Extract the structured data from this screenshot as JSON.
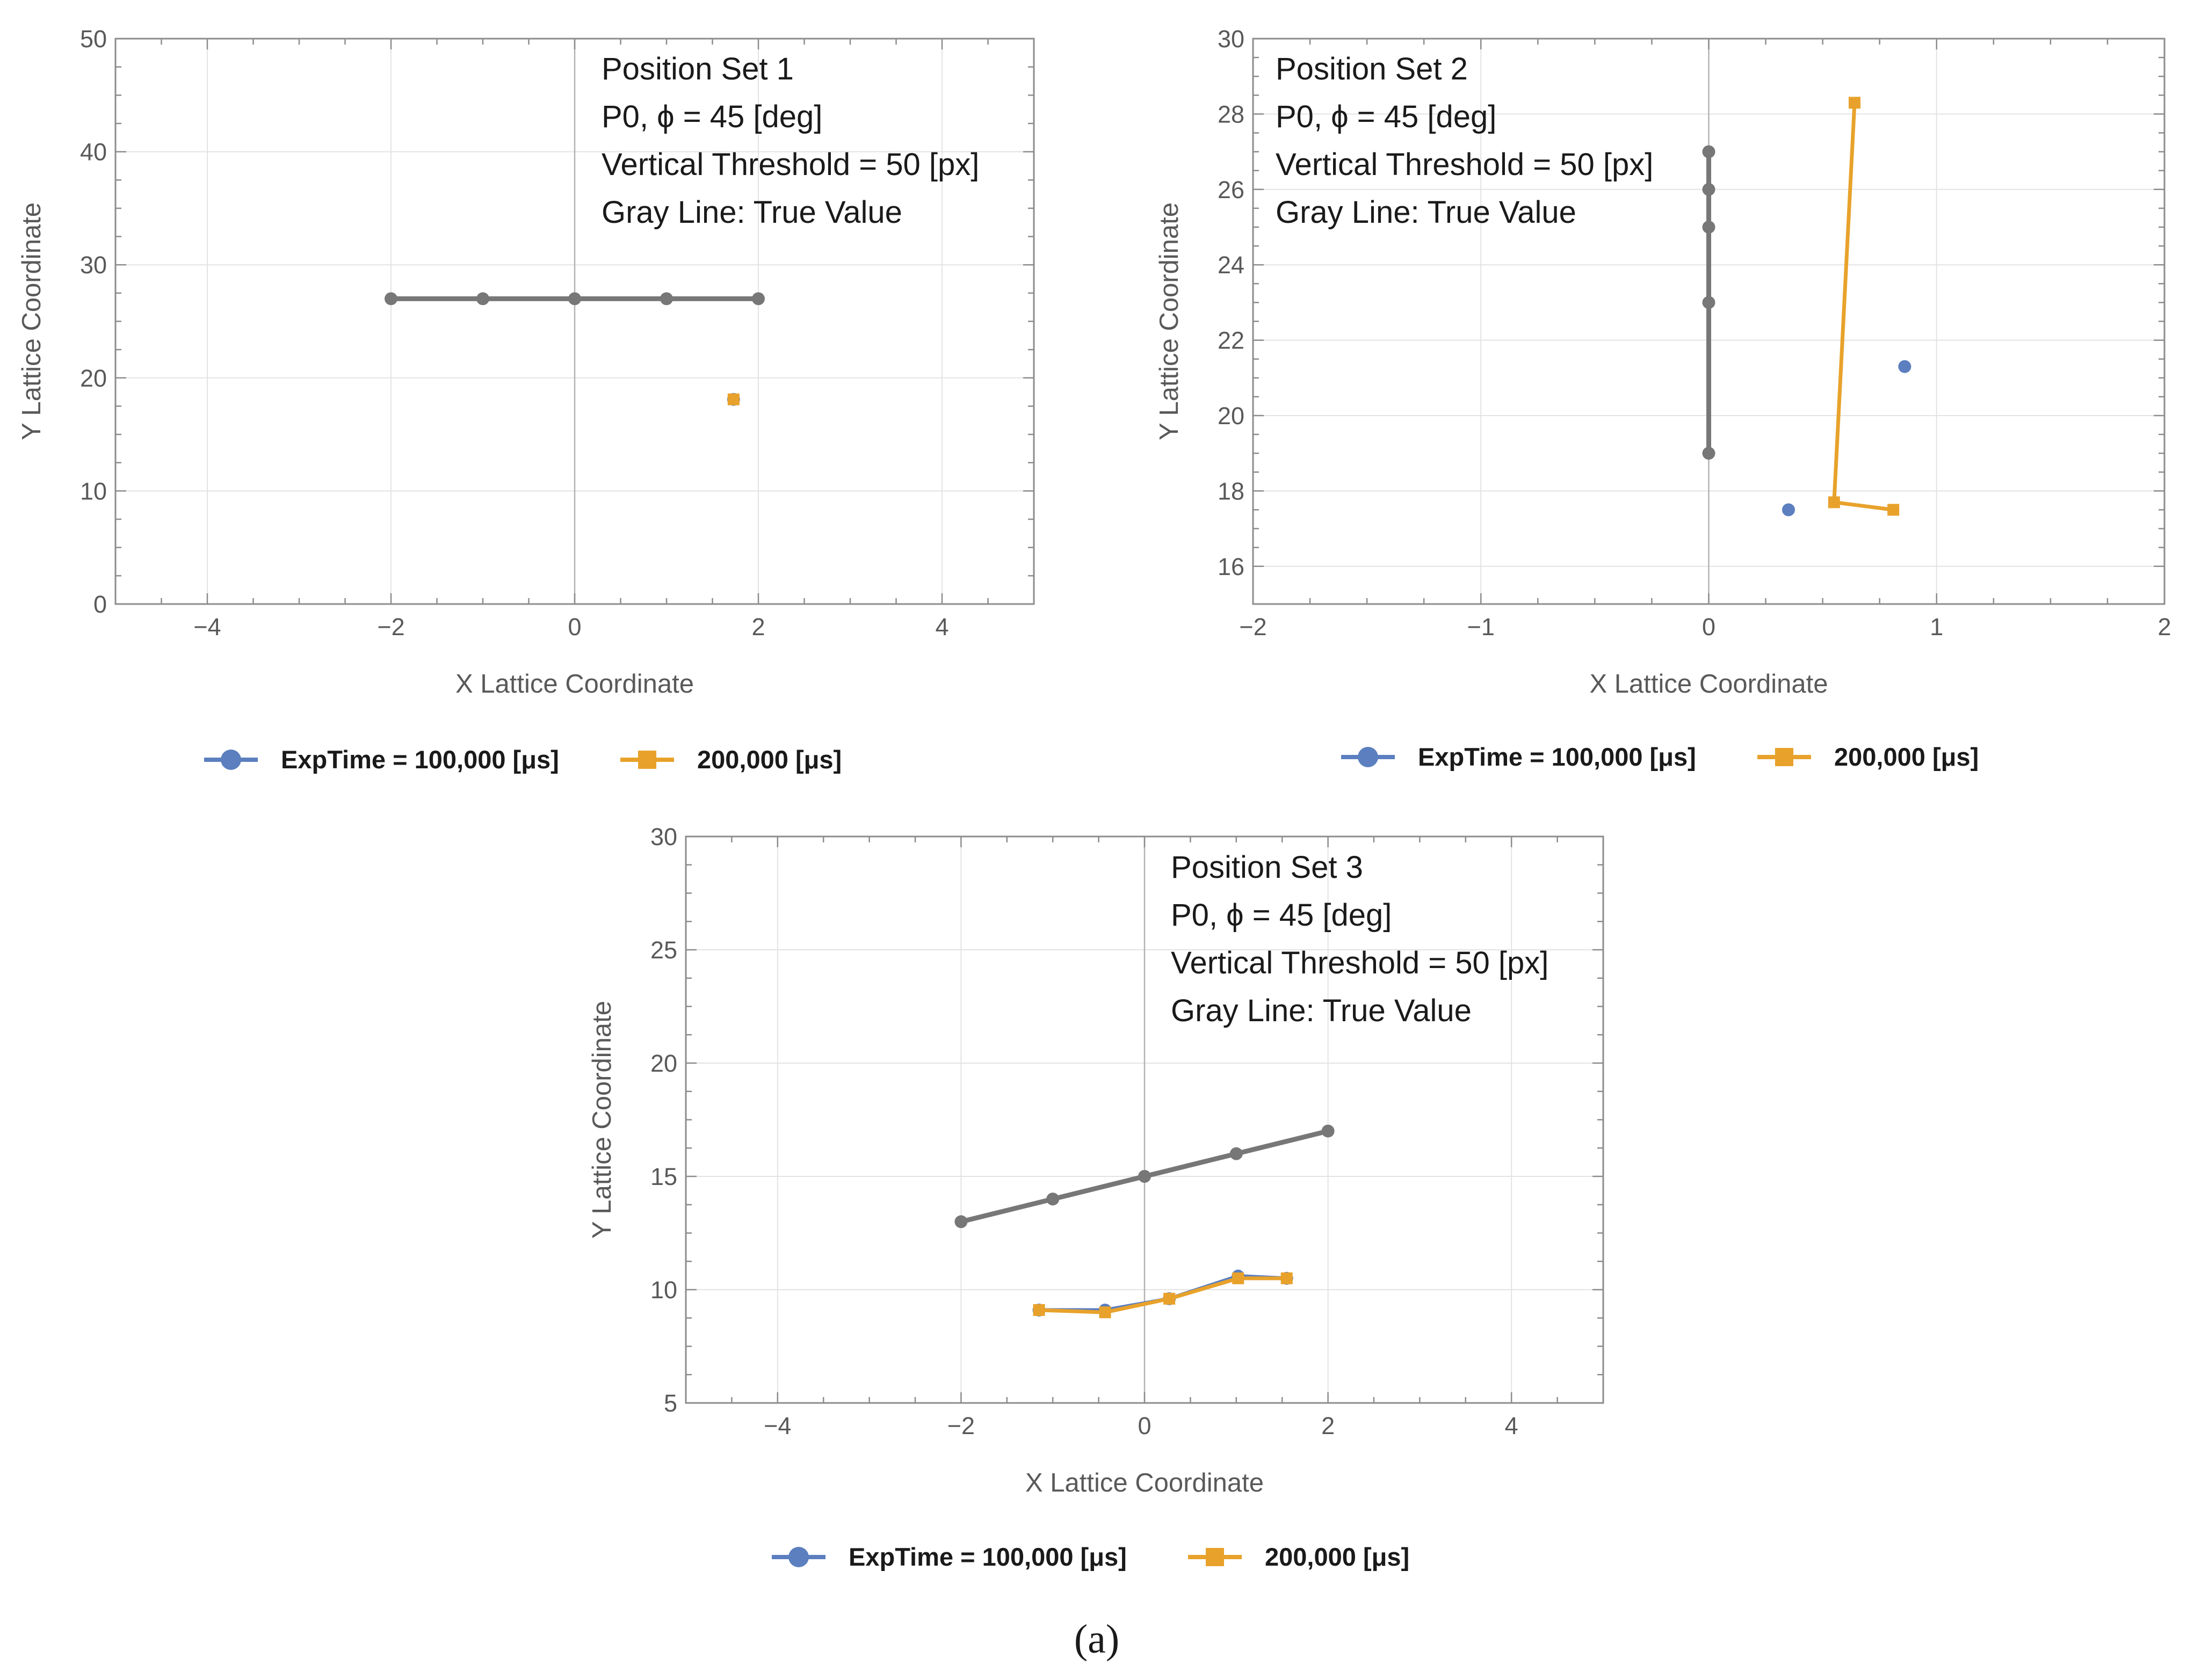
{
  "figure_caption": "(a)",
  "colors": {
    "true_value": "#777777",
    "exp100": "#5b7fbf",
    "exp200": "#e8a22b",
    "frame": "#8c8c8c",
    "grid": "#e3e3e3",
    "zero_axis": "#b3b3b3"
  },
  "chart_data": [
    {
      "type": "line",
      "title": "Position Set 1",
      "annotations": [
        "Position Set 1",
        "P0, ϕ = 45 [deg]",
        "Vertical Threshold = 50 [px]",
        "Gray Line: True Value"
      ],
      "xlabel": "X Lattice Coordinate",
      "ylabel": "Y Lattice Coordinate",
      "xlim": [
        -5,
        5
      ],
      "ylim": [
        0,
        50
      ],
      "xticks": [
        -4,
        -2,
        0,
        2,
        4
      ],
      "xtick_labels": [
        "−4",
        "−2",
        "0",
        "2",
        "4"
      ],
      "yticks": [
        0,
        10,
        20,
        30,
        40,
        50
      ],
      "ytick_labels": [
        "0",
        "10",
        "20",
        "30",
        "40",
        "50"
      ],
      "grid": true,
      "legend": {
        "position": "bottom",
        "entries": [
          "ExpTime = 100,000 [μs]",
          "200,000 [μs]"
        ]
      },
      "series": [
        {
          "name": "True Value",
          "color_key": "true_value",
          "marker": "circle",
          "x": [
            -2,
            -1,
            0,
            1,
            2
          ],
          "y": [
            27,
            27,
            27,
            27,
            27
          ]
        },
        {
          "name": "ExpTime = 100,000 [μs]",
          "color_key": "exp100",
          "marker": "circle",
          "x": [
            1.73
          ],
          "y": [
            18.1
          ]
        },
        {
          "name": "200,000 [μs]",
          "color_key": "exp200",
          "marker": "square",
          "x": [
            1.73
          ],
          "y": [
            18.1
          ]
        }
      ]
    },
    {
      "type": "line",
      "title": "Position Set 2",
      "annotations": [
        "Position Set 2",
        "P0, ϕ = 45 [deg]",
        "Vertical Threshold = 50 [px]",
        "Gray Line: True Value"
      ],
      "xlabel": "X Lattice Coordinate",
      "ylabel": "Y Lattice Coordinate",
      "xlim": [
        -2,
        2
      ],
      "ylim": [
        15,
        30
      ],
      "xticks": [
        -2,
        -1,
        0,
        1,
        2
      ],
      "xtick_labels": [
        "−2",
        "−1",
        "0",
        "1",
        "2"
      ],
      "yticks": [
        16,
        18,
        20,
        22,
        24,
        26,
        28,
        30
      ],
      "ytick_labels": [
        "16",
        "18",
        "20",
        "22",
        "24",
        "26",
        "28",
        "30"
      ],
      "grid": true,
      "legend": {
        "position": "bottom",
        "entries": [
          "ExpTime = 100,000 [μs]",
          "200,000 [μs]"
        ]
      },
      "series": [
        {
          "name": "True Value",
          "color_key": "true_value",
          "marker": "circle",
          "x": [
            0,
            0,
            0,
            0,
            0
          ],
          "y": [
            19,
            23,
            25,
            26,
            27
          ]
        },
        {
          "name": "ExpTime = 100,000 [μs]",
          "color_key": "exp100",
          "marker": "circle",
          "x": [
            0.35,
            0.86
          ],
          "y": [
            17.5,
            21.3
          ],
          "line": false
        },
        {
          "name": "200,000 [μs]",
          "color_key": "exp200",
          "marker": "square",
          "x": [
            0.64,
            0.55,
            0.81
          ],
          "y": [
            28.3,
            17.7,
            17.5
          ]
        }
      ]
    },
    {
      "type": "line",
      "title": "Position Set 3",
      "annotations": [
        "Position Set 3",
        "P0, ϕ = 45 [deg]",
        "Vertical Threshold = 50 [px]",
        "Gray Line: True Value"
      ],
      "xlabel": "X Lattice Coordinate",
      "ylabel": "Y Lattice Coordinate",
      "xlim": [
        -5,
        5
      ],
      "ylim": [
        5,
        30
      ],
      "xticks": [
        -4,
        -2,
        0,
        2,
        4
      ],
      "xtick_labels": [
        "−4",
        "−2",
        "0",
        "2",
        "4"
      ],
      "yticks": [
        5,
        10,
        15,
        20,
        25,
        30
      ],
      "ytick_labels": [
        "5",
        "10",
        "15",
        "20",
        "25",
        "30"
      ],
      "grid": true,
      "legend": {
        "position": "bottom",
        "entries": [
          "ExpTime = 100,000 [μs]",
          "200,000 [μs]"
        ]
      },
      "series": [
        {
          "name": "True Value",
          "color_key": "true_value",
          "marker": "circle",
          "x": [
            -2,
            -1,
            0,
            1,
            2
          ],
          "y": [
            13,
            14,
            15,
            16,
            17
          ]
        },
        {
          "name": "ExpTime = 100,000 [μs]",
          "color_key": "exp100",
          "marker": "circle",
          "x": [
            -1.15,
            -0.43,
            0.27,
            1.02,
            1.55
          ],
          "y": [
            9.1,
            9.1,
            9.6,
            10.6,
            10.5
          ]
        },
        {
          "name": "200,000 [μs]",
          "color_key": "exp200",
          "marker": "square",
          "x": [
            -1.15,
            -0.43,
            0.27,
            1.02,
            1.55
          ],
          "y": [
            9.1,
            9.0,
            9.6,
            10.5,
            10.5
          ]
        }
      ]
    }
  ]
}
